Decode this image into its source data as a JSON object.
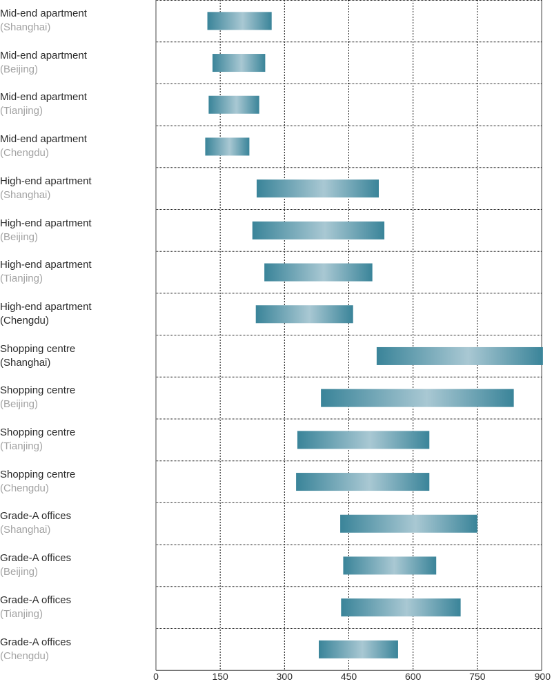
{
  "chart_data": {
    "type": "bar",
    "orientation": "horizontal-range",
    "xlim": [
      0,
      900
    ],
    "x_ticks": [
      "0",
      "150",
      "300",
      "450",
      "600",
      "750",
      "900"
    ],
    "grid": true,
    "categories": [
      {
        "label": "Mid-end apartment",
        "city": "(Shanghai)",
        "city_emphasis": false
      },
      {
        "label": "Mid-end apartment",
        "city": "(Beijing)",
        "city_emphasis": false
      },
      {
        "label": "Mid-end apartment",
        "city": "(Tianjing)",
        "city_emphasis": false
      },
      {
        "label": "Mid-end apartment",
        "city": "(Chengdu)",
        "city_emphasis": false
      },
      {
        "label": "High-end apartment",
        "city": "(Shanghai)",
        "city_emphasis": false
      },
      {
        "label": "High-end apartment",
        "city": "(Beijing)",
        "city_emphasis": false
      },
      {
        "label": "High-end apartment",
        "city": "(Tianjing)",
        "city_emphasis": false
      },
      {
        "label": "High-end apartment",
        "city": "(Chengdu)",
        "city_emphasis": true
      },
      {
        "label": "Shopping centre",
        "city": "(Shanghai)",
        "city_emphasis": true
      },
      {
        "label": "Shopping centre",
        "city": "(Beijing)",
        "city_emphasis": false
      },
      {
        "label": "Shopping centre",
        "city": "(Tianjing)",
        "city_emphasis": false
      },
      {
        "label": "Shopping centre",
        "city": "(Chengdu)",
        "city_emphasis": false
      },
      {
        "label": "Grade-A offices",
        "city": "(Shanghai)",
        "city_emphasis": false
      },
      {
        "label": "Grade-A offices",
        "city": "(Beijing)",
        "city_emphasis": false
      },
      {
        "label": "Grade-A offices",
        "city": "(Tianjing)",
        "city_emphasis": false
      },
      {
        "label": "Grade-A offices",
        "city": "(Chengdu)",
        "city_emphasis": false
      }
    ],
    "ranges": [
      [
        120,
        270
      ],
      [
        132,
        255
      ],
      [
        123,
        241
      ],
      [
        115,
        218
      ],
      [
        235,
        520
      ],
      [
        225,
        533
      ],
      [
        253,
        505
      ],
      [
        233,
        460
      ],
      [
        515,
        903
      ],
      [
        385,
        835
      ],
      [
        330,
        638
      ],
      [
        327,
        638
      ],
      [
        430,
        750
      ],
      [
        437,
        654
      ],
      [
        432,
        711
      ],
      [
        380,
        565
      ]
    ],
    "colors": {
      "bar_edge": "#3a8499",
      "bar_mid": "#a9c8d3",
      "grid": "#111111",
      "label_main": "#2b2b2b",
      "label_city": "#a3a3a3",
      "tick": "#2b2b2b"
    }
  }
}
